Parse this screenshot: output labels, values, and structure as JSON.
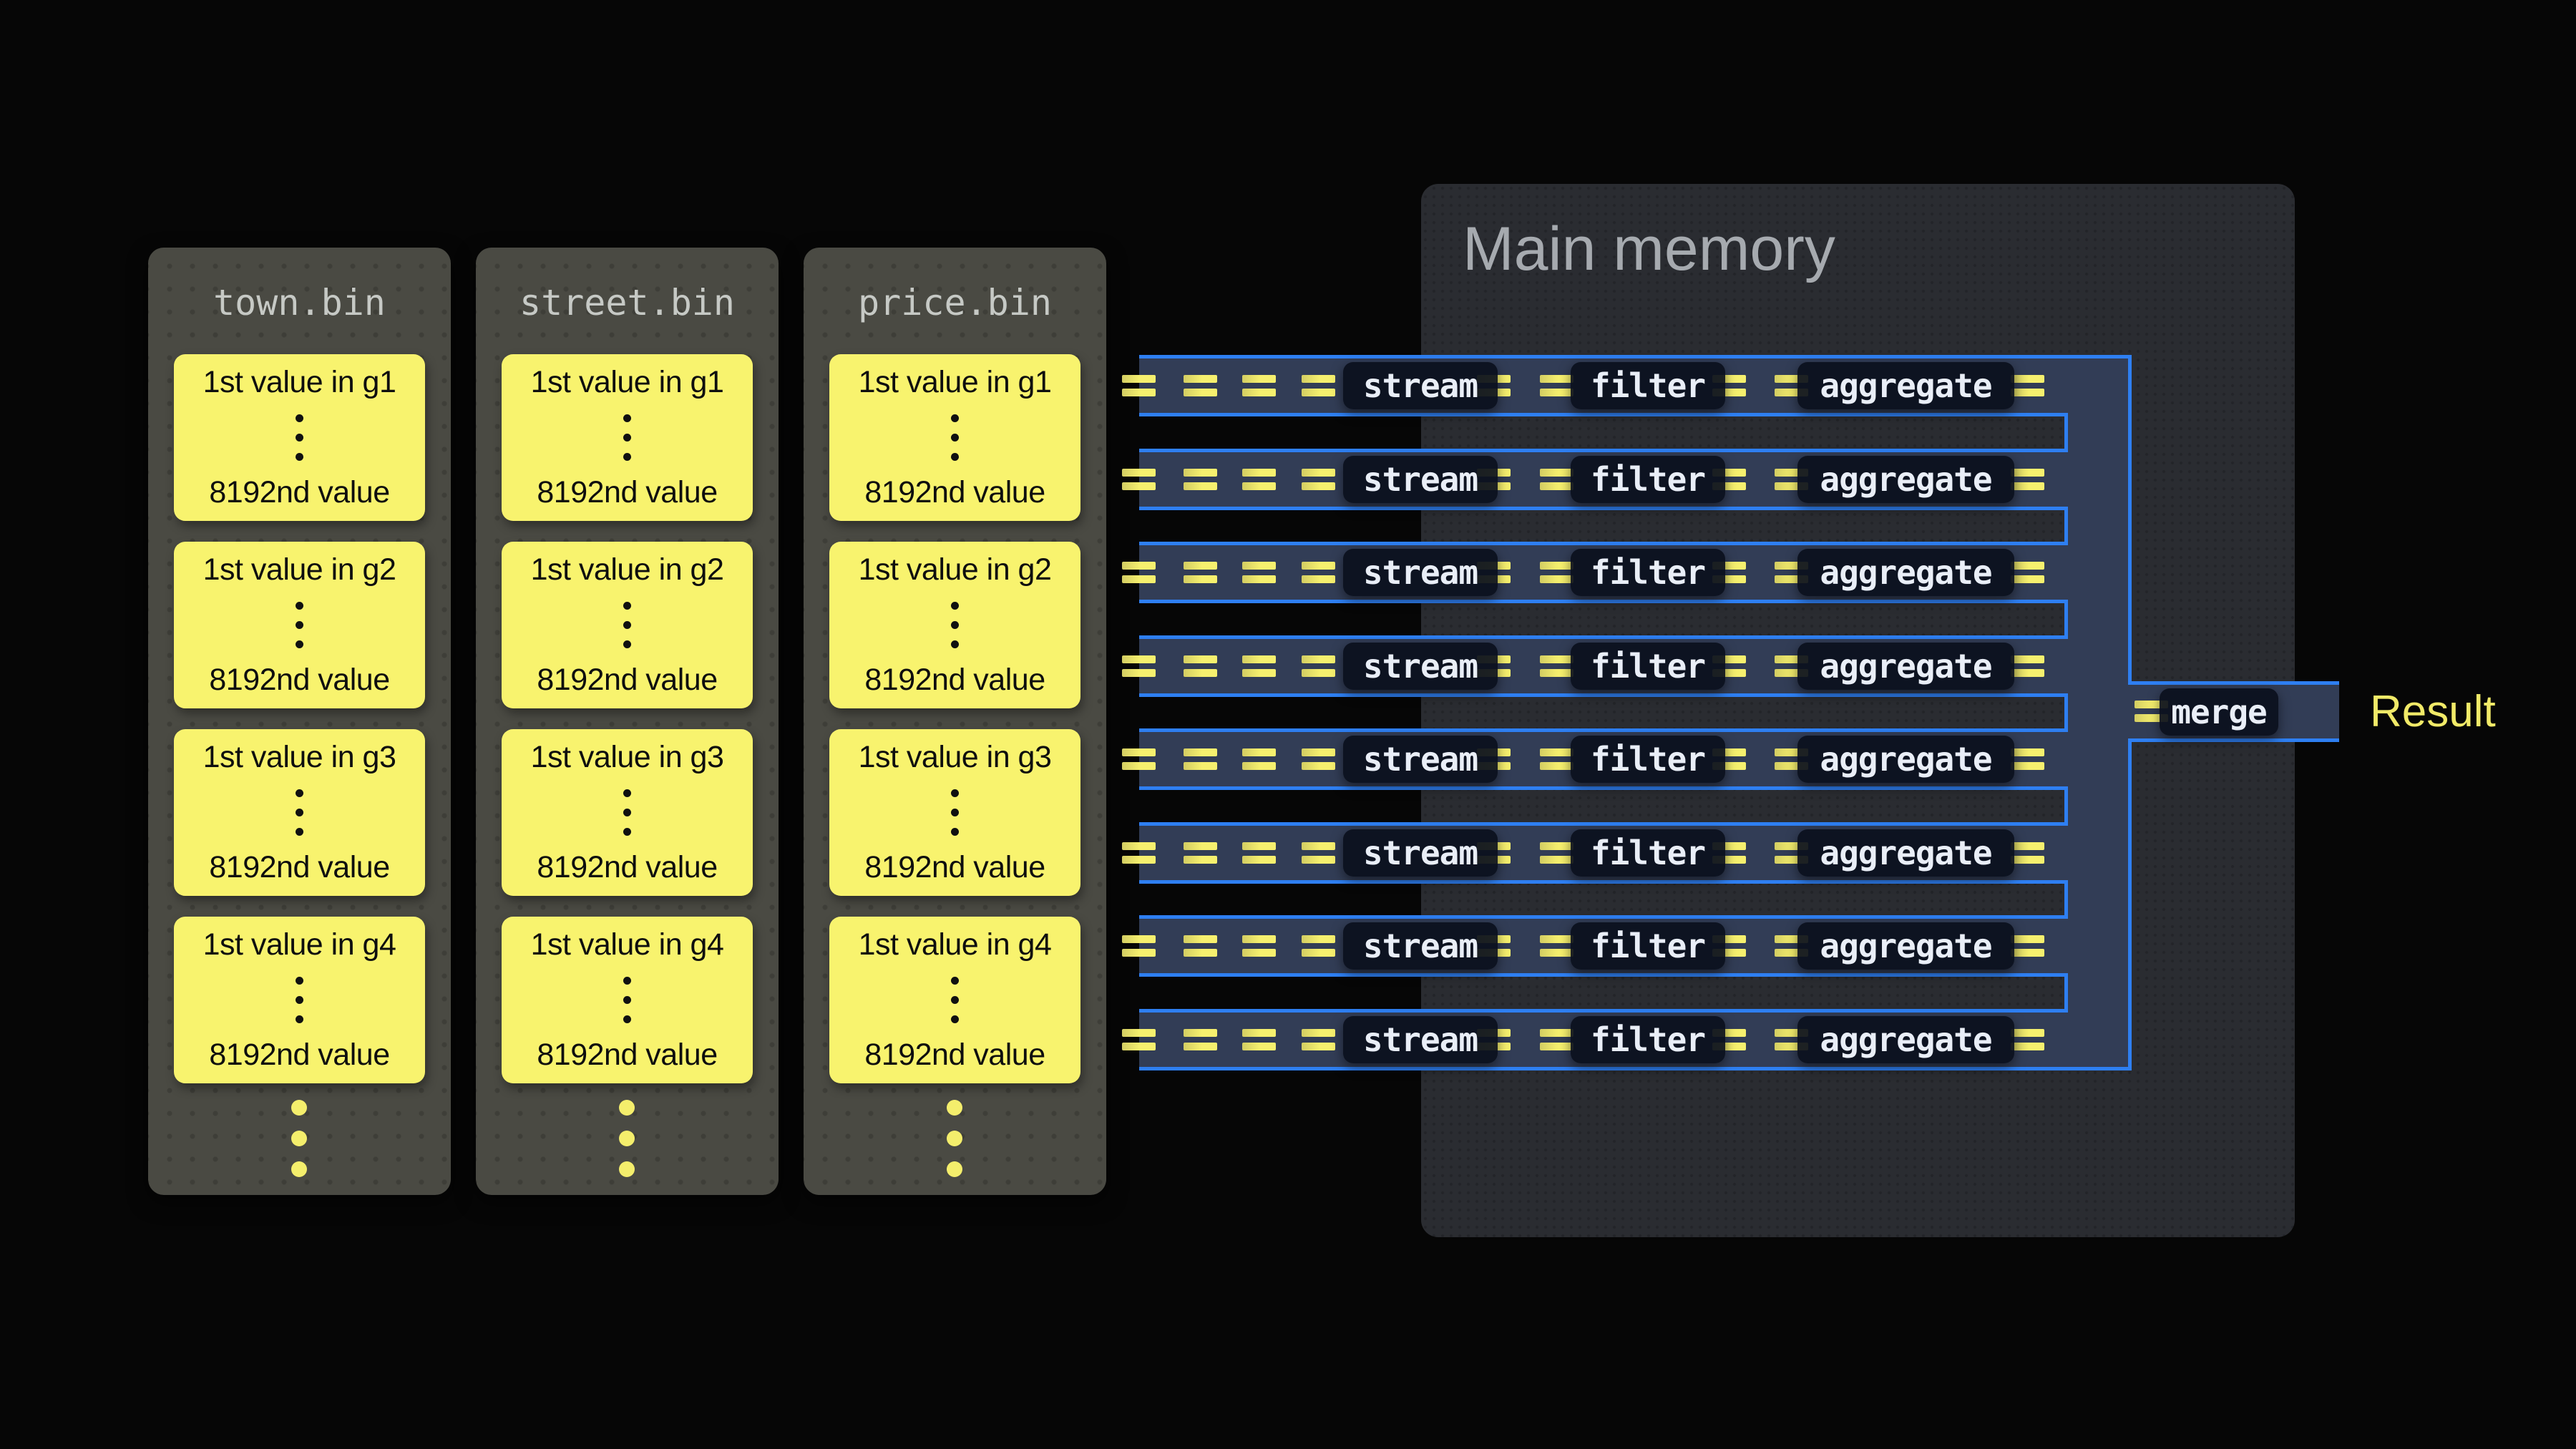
{
  "files": {
    "panels": [
      {
        "title": "town.bin"
      },
      {
        "title": "street.bin"
      },
      {
        "title": "price.bin"
      }
    ],
    "cards": [
      {
        "first": "1st value in g1",
        "last": "8192nd value"
      },
      {
        "first": "1st value in g2",
        "last": "8192nd value"
      },
      {
        "first": "1st value in g3",
        "last": "8192nd value"
      },
      {
        "first": "1st value in g4",
        "last": "8192nd value"
      }
    ]
  },
  "memory": {
    "title": "Main memory"
  },
  "pipeline": {
    "row_count": 8,
    "stages": [
      "stream",
      "filter",
      "aggregate"
    ],
    "merge_label": "merge",
    "result_label": "Result"
  },
  "colors": {
    "background": "#060606",
    "border_blue": "#2e7ff2",
    "dash_yellow": "#f4ee6c",
    "row_fill": "#323d56",
    "chip_bg": "rgba(10,15,28,0.92)",
    "chip_text": "#e9eef7",
    "bin_panel": "#4a4a43",
    "bin_title": "#c6c9c5",
    "card_yellow": "#f8f36e",
    "memory_panel": "#2a2c31",
    "memory_title": "#a6aaaf",
    "result_yellow": "#f1ea68"
  }
}
